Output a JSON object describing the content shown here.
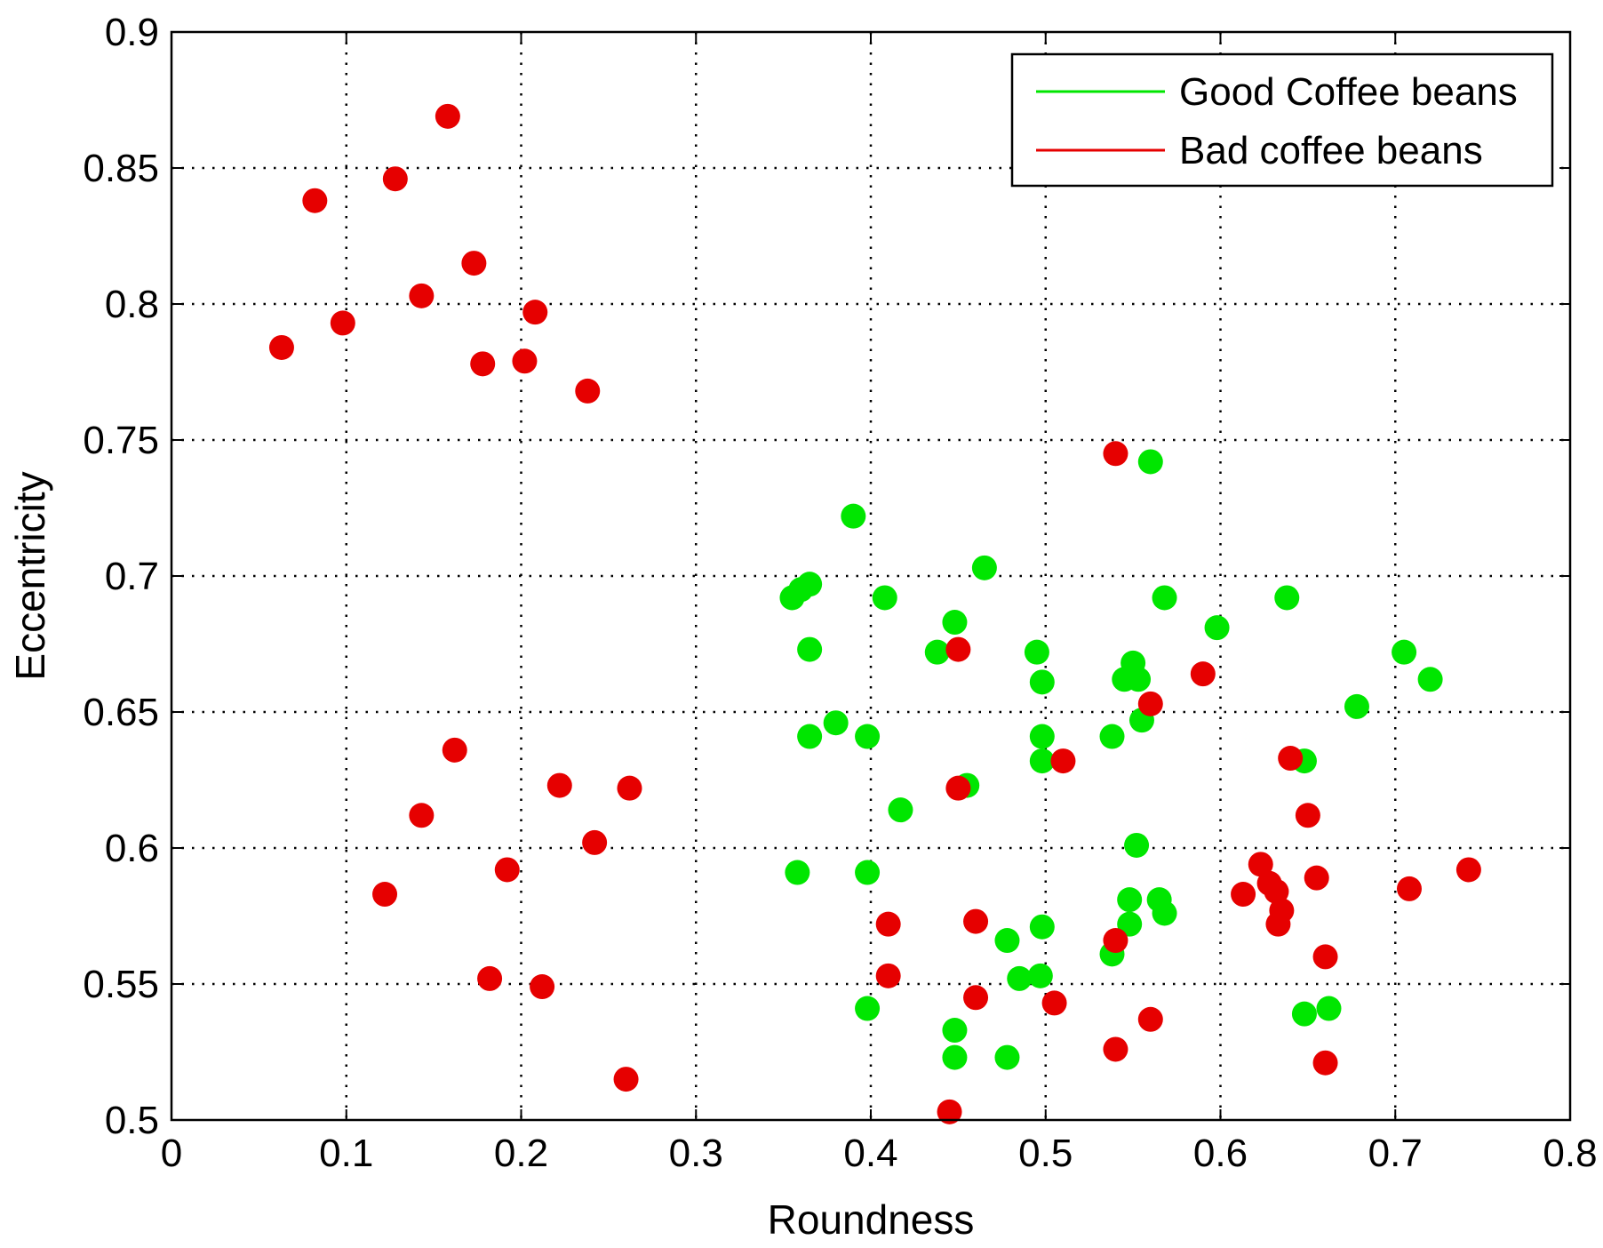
{
  "chart_data": {
    "type": "scatter",
    "title": "",
    "xlabel": "Roundness",
    "ylabel": "Eccentricity",
    "xlim": [
      0,
      0.8
    ],
    "ylim": [
      0.5,
      0.9
    ],
    "xticks": [
      "0",
      "0.1",
      "0.2",
      "0.3",
      "0.4",
      "0.5",
      "0.6",
      "0.7",
      "0.8"
    ],
    "yticks": [
      "0.5",
      "0.55",
      "0.6",
      "0.65",
      "0.7",
      "0.75",
      "0.8",
      "0.85",
      "0.9"
    ],
    "grid": true,
    "legend_position": "top-right",
    "series": [
      {
        "name": "Good Coffee beans",
        "color": "#00e600",
        "points": [
          [
            0.39,
            0.722
          ],
          [
            0.355,
            0.692
          ],
          [
            0.36,
            0.695
          ],
          [
            0.365,
            0.697
          ],
          [
            0.408,
            0.692
          ],
          [
            0.365,
            0.673
          ],
          [
            0.38,
            0.646
          ],
          [
            0.365,
            0.641
          ],
          [
            0.398,
            0.641
          ],
          [
            0.417,
            0.614
          ],
          [
            0.358,
            0.591
          ],
          [
            0.398,
            0.591
          ],
          [
            0.398,
            0.541
          ],
          [
            0.465,
            0.703
          ],
          [
            0.448,
            0.683
          ],
          [
            0.438,
            0.672
          ],
          [
            0.455,
            0.623
          ],
          [
            0.448,
            0.533
          ],
          [
            0.448,
            0.523
          ],
          [
            0.478,
            0.523
          ],
          [
            0.478,
            0.566
          ],
          [
            0.485,
            0.552
          ],
          [
            0.497,
            0.553
          ],
          [
            0.498,
            0.571
          ],
          [
            0.495,
            0.672
          ],
          [
            0.498,
            0.661
          ],
          [
            0.498,
            0.641
          ],
          [
            0.498,
            0.632
          ],
          [
            0.538,
            0.641
          ],
          [
            0.545,
            0.662
          ],
          [
            0.55,
            0.668
          ],
          [
            0.553,
            0.662
          ],
          [
            0.555,
            0.647
          ],
          [
            0.56,
            0.742
          ],
          [
            0.568,
            0.692
          ],
          [
            0.552,
            0.601
          ],
          [
            0.548,
            0.581
          ],
          [
            0.565,
            0.581
          ],
          [
            0.568,
            0.576
          ],
          [
            0.548,
            0.572
          ],
          [
            0.538,
            0.561
          ],
          [
            0.598,
            0.681
          ],
          [
            0.638,
            0.692
          ],
          [
            0.648,
            0.632
          ],
          [
            0.648,
            0.539
          ],
          [
            0.662,
            0.541
          ],
          [
            0.678,
            0.652
          ],
          [
            0.705,
            0.672
          ],
          [
            0.72,
            0.662
          ]
        ]
      },
      {
        "name": "Bad coffee beans",
        "color": "#e60000",
        "points": [
          [
            0.158,
            0.869
          ],
          [
            0.082,
            0.838
          ],
          [
            0.128,
            0.846
          ],
          [
            0.173,
            0.815
          ],
          [
            0.143,
            0.803
          ],
          [
            0.208,
            0.797
          ],
          [
            0.098,
            0.793
          ],
          [
            0.063,
            0.784
          ],
          [
            0.178,
            0.778
          ],
          [
            0.202,
            0.779
          ],
          [
            0.238,
            0.768
          ],
          [
            0.162,
            0.636
          ],
          [
            0.222,
            0.623
          ],
          [
            0.262,
            0.622
          ],
          [
            0.143,
            0.612
          ],
          [
            0.242,
            0.602
          ],
          [
            0.192,
            0.592
          ],
          [
            0.122,
            0.583
          ],
          [
            0.182,
            0.552
          ],
          [
            0.212,
            0.549
          ],
          [
            0.26,
            0.515
          ],
          [
            0.54,
            0.745
          ],
          [
            0.45,
            0.673
          ],
          [
            0.59,
            0.664
          ],
          [
            0.56,
            0.653
          ],
          [
            0.51,
            0.632
          ],
          [
            0.64,
            0.633
          ],
          [
            0.45,
            0.622
          ],
          [
            0.65,
            0.612
          ],
          [
            0.623,
            0.594
          ],
          [
            0.628,
            0.587
          ],
          [
            0.613,
            0.583
          ],
          [
            0.632,
            0.584
          ],
          [
            0.655,
            0.589
          ],
          [
            0.708,
            0.585
          ],
          [
            0.742,
            0.592
          ],
          [
            0.635,
            0.577
          ],
          [
            0.633,
            0.572
          ],
          [
            0.41,
            0.572
          ],
          [
            0.46,
            0.573
          ],
          [
            0.54,
            0.566
          ],
          [
            0.66,
            0.56
          ],
          [
            0.41,
            0.553
          ],
          [
            0.46,
            0.545
          ],
          [
            0.505,
            0.543
          ],
          [
            0.56,
            0.537
          ],
          [
            0.54,
            0.526
          ],
          [
            0.66,
            0.521
          ],
          [
            0.445,
            0.503
          ]
        ]
      }
    ]
  }
}
